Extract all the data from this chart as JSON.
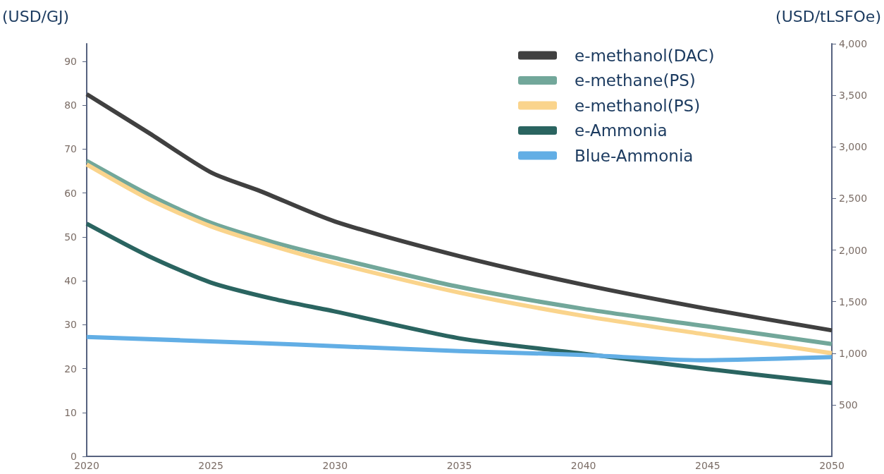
{
  "chart_data": {
    "type": "line",
    "ylabel": "(USD/GJ)",
    "y2label": "(USD/tLSFOe)",
    "xlim": [
      2020,
      2050
    ],
    "xticks": [
      2020,
      2025,
      2030,
      2035,
      2040,
      2045,
      2050
    ],
    "ylim": [
      0,
      94
    ],
    "yticks": [
      0,
      10,
      20,
      30,
      40,
      50,
      60,
      70,
      80,
      90
    ],
    "y2lim": [
      0,
      4000
    ],
    "y2ticks": [
      500,
      {
        "value": 1000,
        "label": "1,000"
      },
      {
        "value": 1500,
        "label": "1,500"
      },
      {
        "value": 2000,
        "label": "2,000"
      },
      {
        "value": 2500,
        "label": "2,500"
      },
      {
        "value": 3000,
        "label": "3,000"
      },
      {
        "value": 3500,
        "label": "3,500"
      },
      {
        "value": 4000,
        "label": "4,000"
      }
    ],
    "grid": false,
    "legend": "top right",
    "marker": "none",
    "line_style": "solid",
    "series": [
      {
        "name": "e-methanol(DAC)",
        "color": "#404040",
        "x": [
          2020,
          2022.5,
          2025,
          2027,
          2030,
          2035,
          2040,
          2045,
          2050
        ],
        "values": [
          82.5,
          73.7,
          64.7,
          60.4,
          53.5,
          45.6,
          39.1,
          33.6,
          28.7
        ]
      },
      {
        "name": "e-methane(PS)",
        "color": "#72a79a",
        "x": [
          2020,
          2022.5,
          2025,
          2027.5,
          2030,
          2035,
          2040,
          2045,
          2050
        ],
        "values": [
          67.3,
          59.6,
          53.2,
          48.8,
          45.2,
          38.6,
          33.6,
          29.6,
          25.6
        ]
      },
      {
        "name": "e-methanol(PS)",
        "color": "#fad48c",
        "x": [
          2020,
          2022.5,
          2025,
          2027.5,
          2030,
          2035,
          2040,
          2045,
          2050
        ],
        "values": [
          66.5,
          58.6,
          52.4,
          47.9,
          44.0,
          37.3,
          32.0,
          27.7,
          23.5
        ]
      },
      {
        "name": "e-Ammonia",
        "color": "#2a6460",
        "x": [
          2020,
          2022.5,
          2025,
          2027.5,
          2030,
          2035,
          2040,
          2045,
          2050
        ],
        "values": [
          53.0,
          45.6,
          39.6,
          35.9,
          33.0,
          26.9,
          23.4,
          19.9,
          16.7
        ]
      },
      {
        "name": "Blue-Ammonia",
        "color": "#62aee5",
        "x": [
          2020,
          2027,
          2030,
          2035,
          2040,
          2044.7,
          2050
        ],
        "values": [
          27.2,
          25.8,
          25.1,
          24.0,
          23.1,
          21.9,
          22.6
        ]
      }
    ]
  }
}
